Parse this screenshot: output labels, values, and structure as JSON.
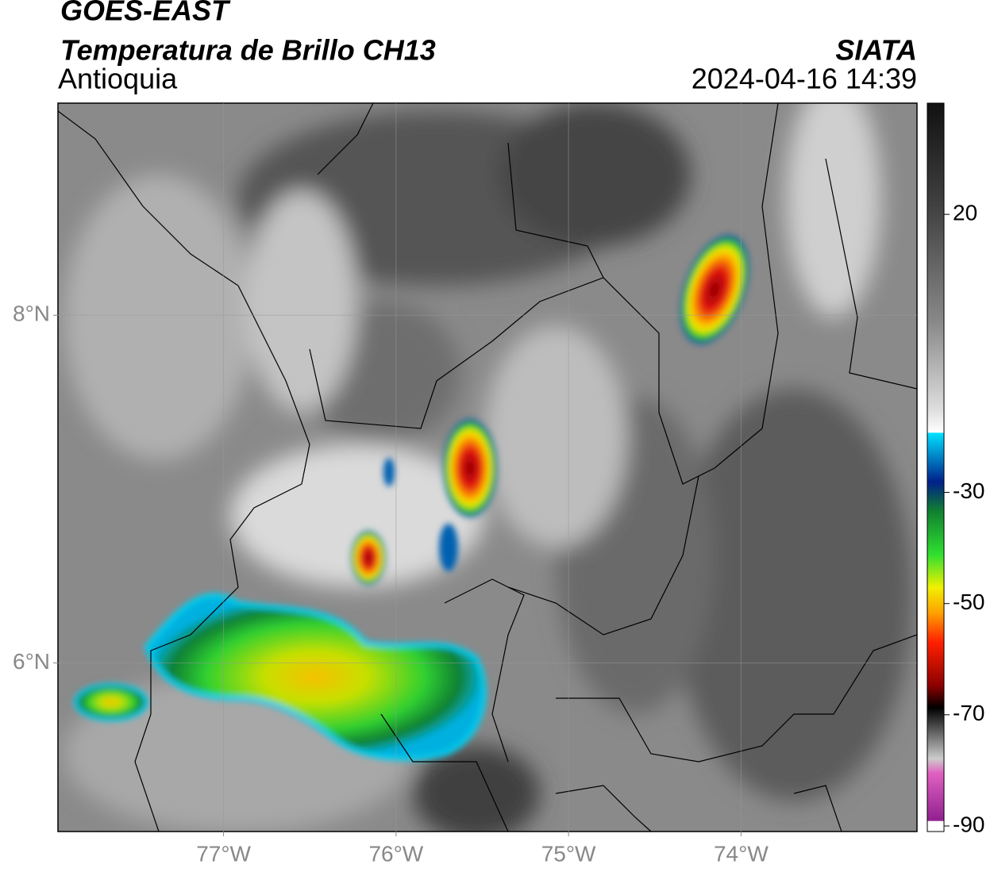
{
  "header": {
    "title": "GOES-EAST",
    "subtitle": "Temperatura de Brillo CH13",
    "region": "Antioquia",
    "source": "SIATA",
    "datetime": "2024-04-16 14:39"
  },
  "map": {
    "xlim": [
      -77.96,
      -72.98
    ],
    "ylim": [
      5.03,
      9.22
    ],
    "xticks": [
      {
        "value": -77,
        "label": "77°W"
      },
      {
        "value": -76,
        "label": "76°W"
      },
      {
        "value": -75,
        "label": "75°W"
      },
      {
        "value": -74,
        "label": "74°W"
      }
    ],
    "yticks": [
      {
        "value": 6,
        "label": "6°N"
      },
      {
        "value": 8,
        "label": "8°N"
      }
    ],
    "grid": true
  },
  "colorbar": {
    "lim": [
      -91,
      40
    ],
    "ticks": [
      20,
      -30,
      -50,
      -70,
      -90
    ]
  }
}
